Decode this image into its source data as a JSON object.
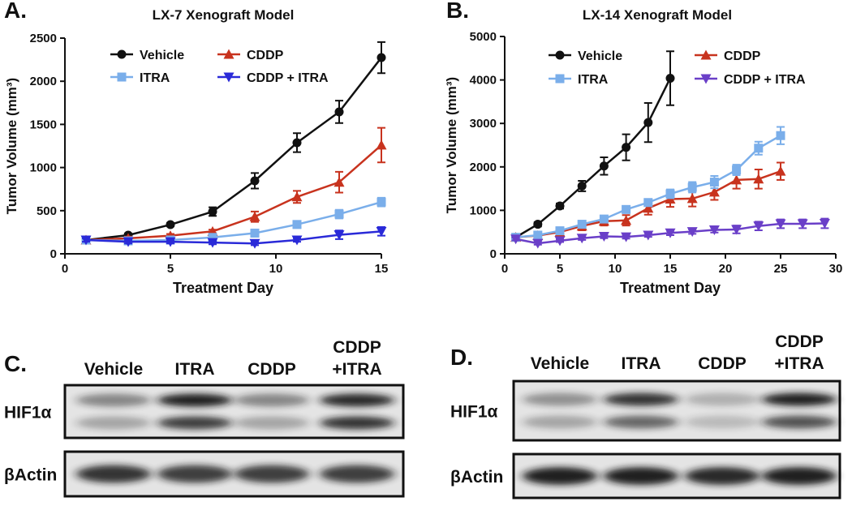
{
  "chart_data": [
    {
      "type": "line",
      "panel": "A.",
      "title": "LX-7 Xenograft Model",
      "x_label": "Treatment Day",
      "y_label": "Tumor Volume (mm³)",
      "xlim": [
        0,
        15
      ],
      "xticks": [
        0,
        5,
        10,
        15
      ],
      "ylim": [
        0,
        2500
      ],
      "yticks": [
        0,
        500,
        1000,
        1500,
        2000,
        2500
      ],
      "series": [
        {
          "name": "Vehicle",
          "color": "#111111",
          "marker": "circle",
          "x": [
            1,
            3,
            5,
            7,
            9,
            11,
            13,
            15
          ],
          "values": [
            160,
            216,
            338,
            489,
            846,
            1288,
            1645,
            2274
          ],
          "errors": [
            20,
            20,
            20,
            50,
            90,
            110,
            130,
            180
          ]
        },
        {
          "name": "CDDP",
          "color": "#c8331e",
          "marker": "triangle",
          "x": [
            1,
            3,
            5,
            7,
            9,
            11,
            13,
            15
          ],
          "values": [
            160,
            180,
            210,
            260,
            430,
            660,
            830,
            1260
          ],
          "errors": [
            20,
            20,
            20,
            20,
            60,
            70,
            120,
            200
          ]
        },
        {
          "name": "ITRA",
          "color": "#7aaeea",
          "marker": "square",
          "x": [
            1,
            3,
            5,
            7,
            9,
            11,
            13,
            15
          ],
          "values": [
            160,
            150,
            160,
            190,
            240,
            340,
            460,
            600
          ],
          "errors": [
            20,
            20,
            20,
            20,
            20,
            40,
            50,
            50
          ]
        },
        {
          "name": "CDDP + ITRA",
          "color": "#2a2ad8",
          "marker": "triangle-down",
          "x": [
            1,
            3,
            5,
            7,
            9,
            11,
            13,
            15
          ],
          "values": [
            160,
            140,
            140,
            130,
            120,
            160,
            220,
            260
          ],
          "errors": [
            20,
            20,
            20,
            20,
            20,
            20,
            50,
            50
          ]
        }
      ]
    },
    {
      "type": "line",
      "panel": "B.",
      "title": "LX-14 Xenograft Model",
      "x_label": "Treatment Day",
      "y_label": "Tumor Volume (mm³)",
      "xlim": [
        0,
        30
      ],
      "xticks": [
        0,
        5,
        10,
        15,
        20,
        25,
        30
      ],
      "ylim": [
        0,
        5000
      ],
      "yticks": [
        0,
        1000,
        2000,
        3000,
        4000,
        5000
      ],
      "series": [
        {
          "name": "Vehicle",
          "color": "#111111",
          "marker": "circle",
          "x": [
            1,
            3,
            5,
            7,
            9,
            11,
            13,
            15
          ],
          "values": [
            380,
            680,
            1100,
            1560,
            2020,
            2450,
            3020,
            4040
          ],
          "errors": [
            40,
            50,
            60,
            120,
            200,
            300,
            450,
            620
          ]
        },
        {
          "name": "CDDP",
          "color": "#c8331e",
          "marker": "triangle",
          "x": [
            1,
            3,
            5,
            7,
            9,
            11,
            13,
            15,
            17,
            19,
            21,
            23,
            25
          ],
          "values": [
            380,
            420,
            500,
            640,
            750,
            770,
            1050,
            1260,
            1270,
            1420,
            1700,
            1720,
            1900
          ],
          "errors": [
            40,
            50,
            60,
            100,
            100,
            120,
            150,
            180,
            180,
            180,
            200,
            220,
            200
          ]
        },
        {
          "name": "ITRA",
          "color": "#7aaeea",
          "marker": "square",
          "x": [
            1,
            3,
            5,
            7,
            9,
            11,
            13,
            15,
            17,
            19,
            21,
            23,
            25
          ],
          "values": [
            380,
            430,
            530,
            680,
            800,
            1020,
            1180,
            1380,
            1530,
            1650,
            1930,
            2430,
            2720
          ],
          "errors": [
            40,
            40,
            50,
            60,
            70,
            80,
            80,
            100,
            120,
            140,
            120,
            150,
            200
          ]
        },
        {
          "name": "CDDP + ITRA",
          "color": "#6a3fc8",
          "marker": "triangle-down",
          "x": [
            1,
            3,
            5,
            7,
            9,
            11,
            13,
            15,
            17,
            19,
            21,
            23,
            25,
            27,
            29
          ],
          "values": [
            340,
            240,
            300,
            360,
            400,
            390,
            430,
            480,
            510,
            550,
            560,
            640,
            690,
            690,
            700
          ],
          "errors": [
            30,
            30,
            30,
            40,
            40,
            40,
            40,
            50,
            50,
            60,
            90,
            100,
            100,
            100,
            110
          ]
        }
      ]
    }
  ],
  "blots": [
    {
      "panel": "C.",
      "lanes": [
        [
          "Vehicle"
        ],
        [
          "ITRA"
        ],
        [
          "CDDP"
        ],
        [
          "CDDP",
          "+ITRA"
        ]
      ],
      "rows": [
        "HIF1α",
        "βActin"
      ]
    },
    {
      "panel": "D.",
      "lanes": [
        [
          "Vehicle"
        ],
        [
          "ITRA"
        ],
        [
          "CDDP"
        ],
        [
          "CDDP",
          "+ITRA"
        ]
      ],
      "rows": [
        "HIF1α",
        "βActin"
      ]
    }
  ]
}
